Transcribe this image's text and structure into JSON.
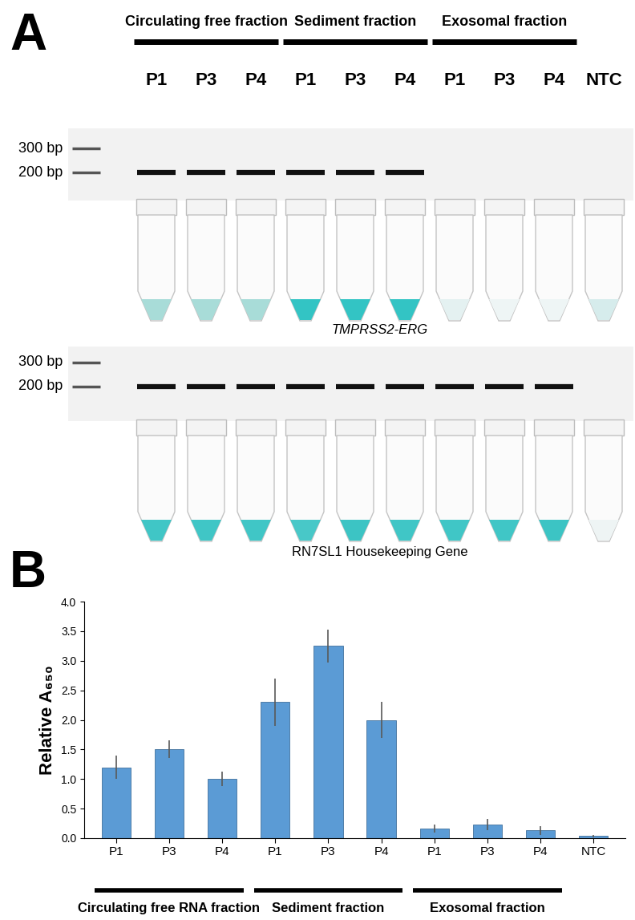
{
  "panel_a": {
    "letter": "A",
    "groups": [
      {
        "label": "Circulating free fraction",
        "size": 3
      },
      {
        "label": "Sediment fraction",
        "size": 3
      },
      {
        "label": "Exosomal fraction",
        "size": 3
      }
    ],
    "lanes": [
      "P1",
      "P3",
      "P4",
      "P1",
      "P3",
      "P4",
      "P1",
      "P3",
      "P4",
      "NTC"
    ],
    "ladder": [
      "300 bp",
      "200 bp"
    ],
    "gels": [
      {
        "label": "TMPRSS2-ERG",
        "bands": [
          true,
          true,
          true,
          true,
          true,
          true,
          false,
          false,
          false,
          false
        ],
        "colors": [
          "#a8dcd8",
          "#a8dcd8",
          "#a8dcd8",
          "#33c4c4",
          "#33c4c4",
          "#33c4c4",
          "#e4f1f1",
          "#eef5f5",
          "#eef5f5",
          "#d6ecec"
        ]
      },
      {
        "label": "RN7SL1 Housekeeping Gene",
        "bands": [
          true,
          true,
          true,
          true,
          true,
          true,
          true,
          true,
          true,
          false
        ],
        "colors": [
          "#40c6c6",
          "#40c6c6",
          "#40c6c6",
          "#48c8c8",
          "#3cc4c4",
          "#40c6c6",
          "#40c6c6",
          "#40c6c6",
          "#3cc4c4",
          "#eef4f4"
        ]
      }
    ]
  },
  "panel_b": {
    "letter": "B"
  },
  "chart_data": {
    "type": "bar",
    "y_label": "Relative A₆₅₀",
    "categories": [
      "P1",
      "P3",
      "P4",
      "P1",
      "P3",
      "P4",
      "P1",
      "P3",
      "P4",
      "NTC"
    ],
    "values": [
      1.2,
      1.5,
      1.0,
      2.3,
      3.25,
      2.0,
      0.16,
      0.23,
      0.13,
      0.04
    ],
    "errors": [
      0.2,
      0.15,
      0.12,
      0.4,
      0.28,
      0.3,
      0.07,
      0.1,
      0.07,
      0.02
    ],
    "groups": [
      {
        "label": "Circulating free RNA fraction",
        "size": 3
      },
      {
        "label": "Sediment fraction",
        "size": 3
      },
      {
        "label": "Exosomal fraction",
        "size": 3
      }
    ],
    "color": "#5b9bd5",
    "ylim": [
      0,
      4
    ],
    "yticks": [
      {
        "value": 0,
        "label": "0.0"
      },
      {
        "value": 0.5,
        "label": "0.5"
      },
      {
        "value": 1,
        "label": "1.0"
      },
      {
        "value": 1.5,
        "label": "1.5"
      },
      {
        "value": 2,
        "label": "2.0"
      },
      {
        "value": 2.5,
        "label": "2.5"
      },
      {
        "value": 3,
        "label": "3.0"
      },
      {
        "value": 3.5,
        "label": "3.5"
      },
      {
        "value": 4,
        "label": "4.0"
      }
    ],
    "grid": false
  }
}
